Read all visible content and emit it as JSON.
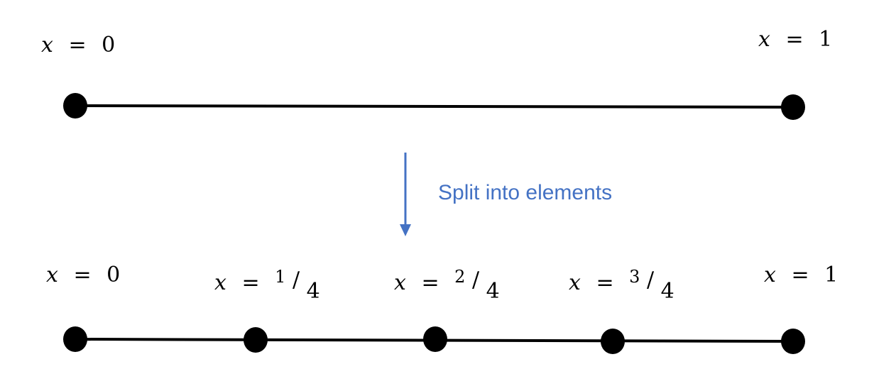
{
  "accent_color": "#4472C4",
  "line_color": "#000000",
  "caption": "Split into elements",
  "top_line": {
    "nodes": [
      {
        "var": "x",
        "op": "=",
        "value": "0"
      },
      {
        "var": "x",
        "op": "=",
        "value": "1"
      }
    ]
  },
  "bottom_line": {
    "nodes": [
      {
        "var": "x",
        "op": "=",
        "value": "0"
      },
      {
        "var": "x",
        "op": "=",
        "numerator": "1",
        "slash": "/",
        "denominator": "4"
      },
      {
        "var": "x",
        "op": "=",
        "numerator": "2",
        "slash": "/",
        "denominator": "4"
      },
      {
        "var": "x",
        "op": "=",
        "numerator": "3",
        "slash": "/",
        "denominator": "4"
      },
      {
        "var": "x",
        "op": "=",
        "value": "1"
      }
    ]
  }
}
